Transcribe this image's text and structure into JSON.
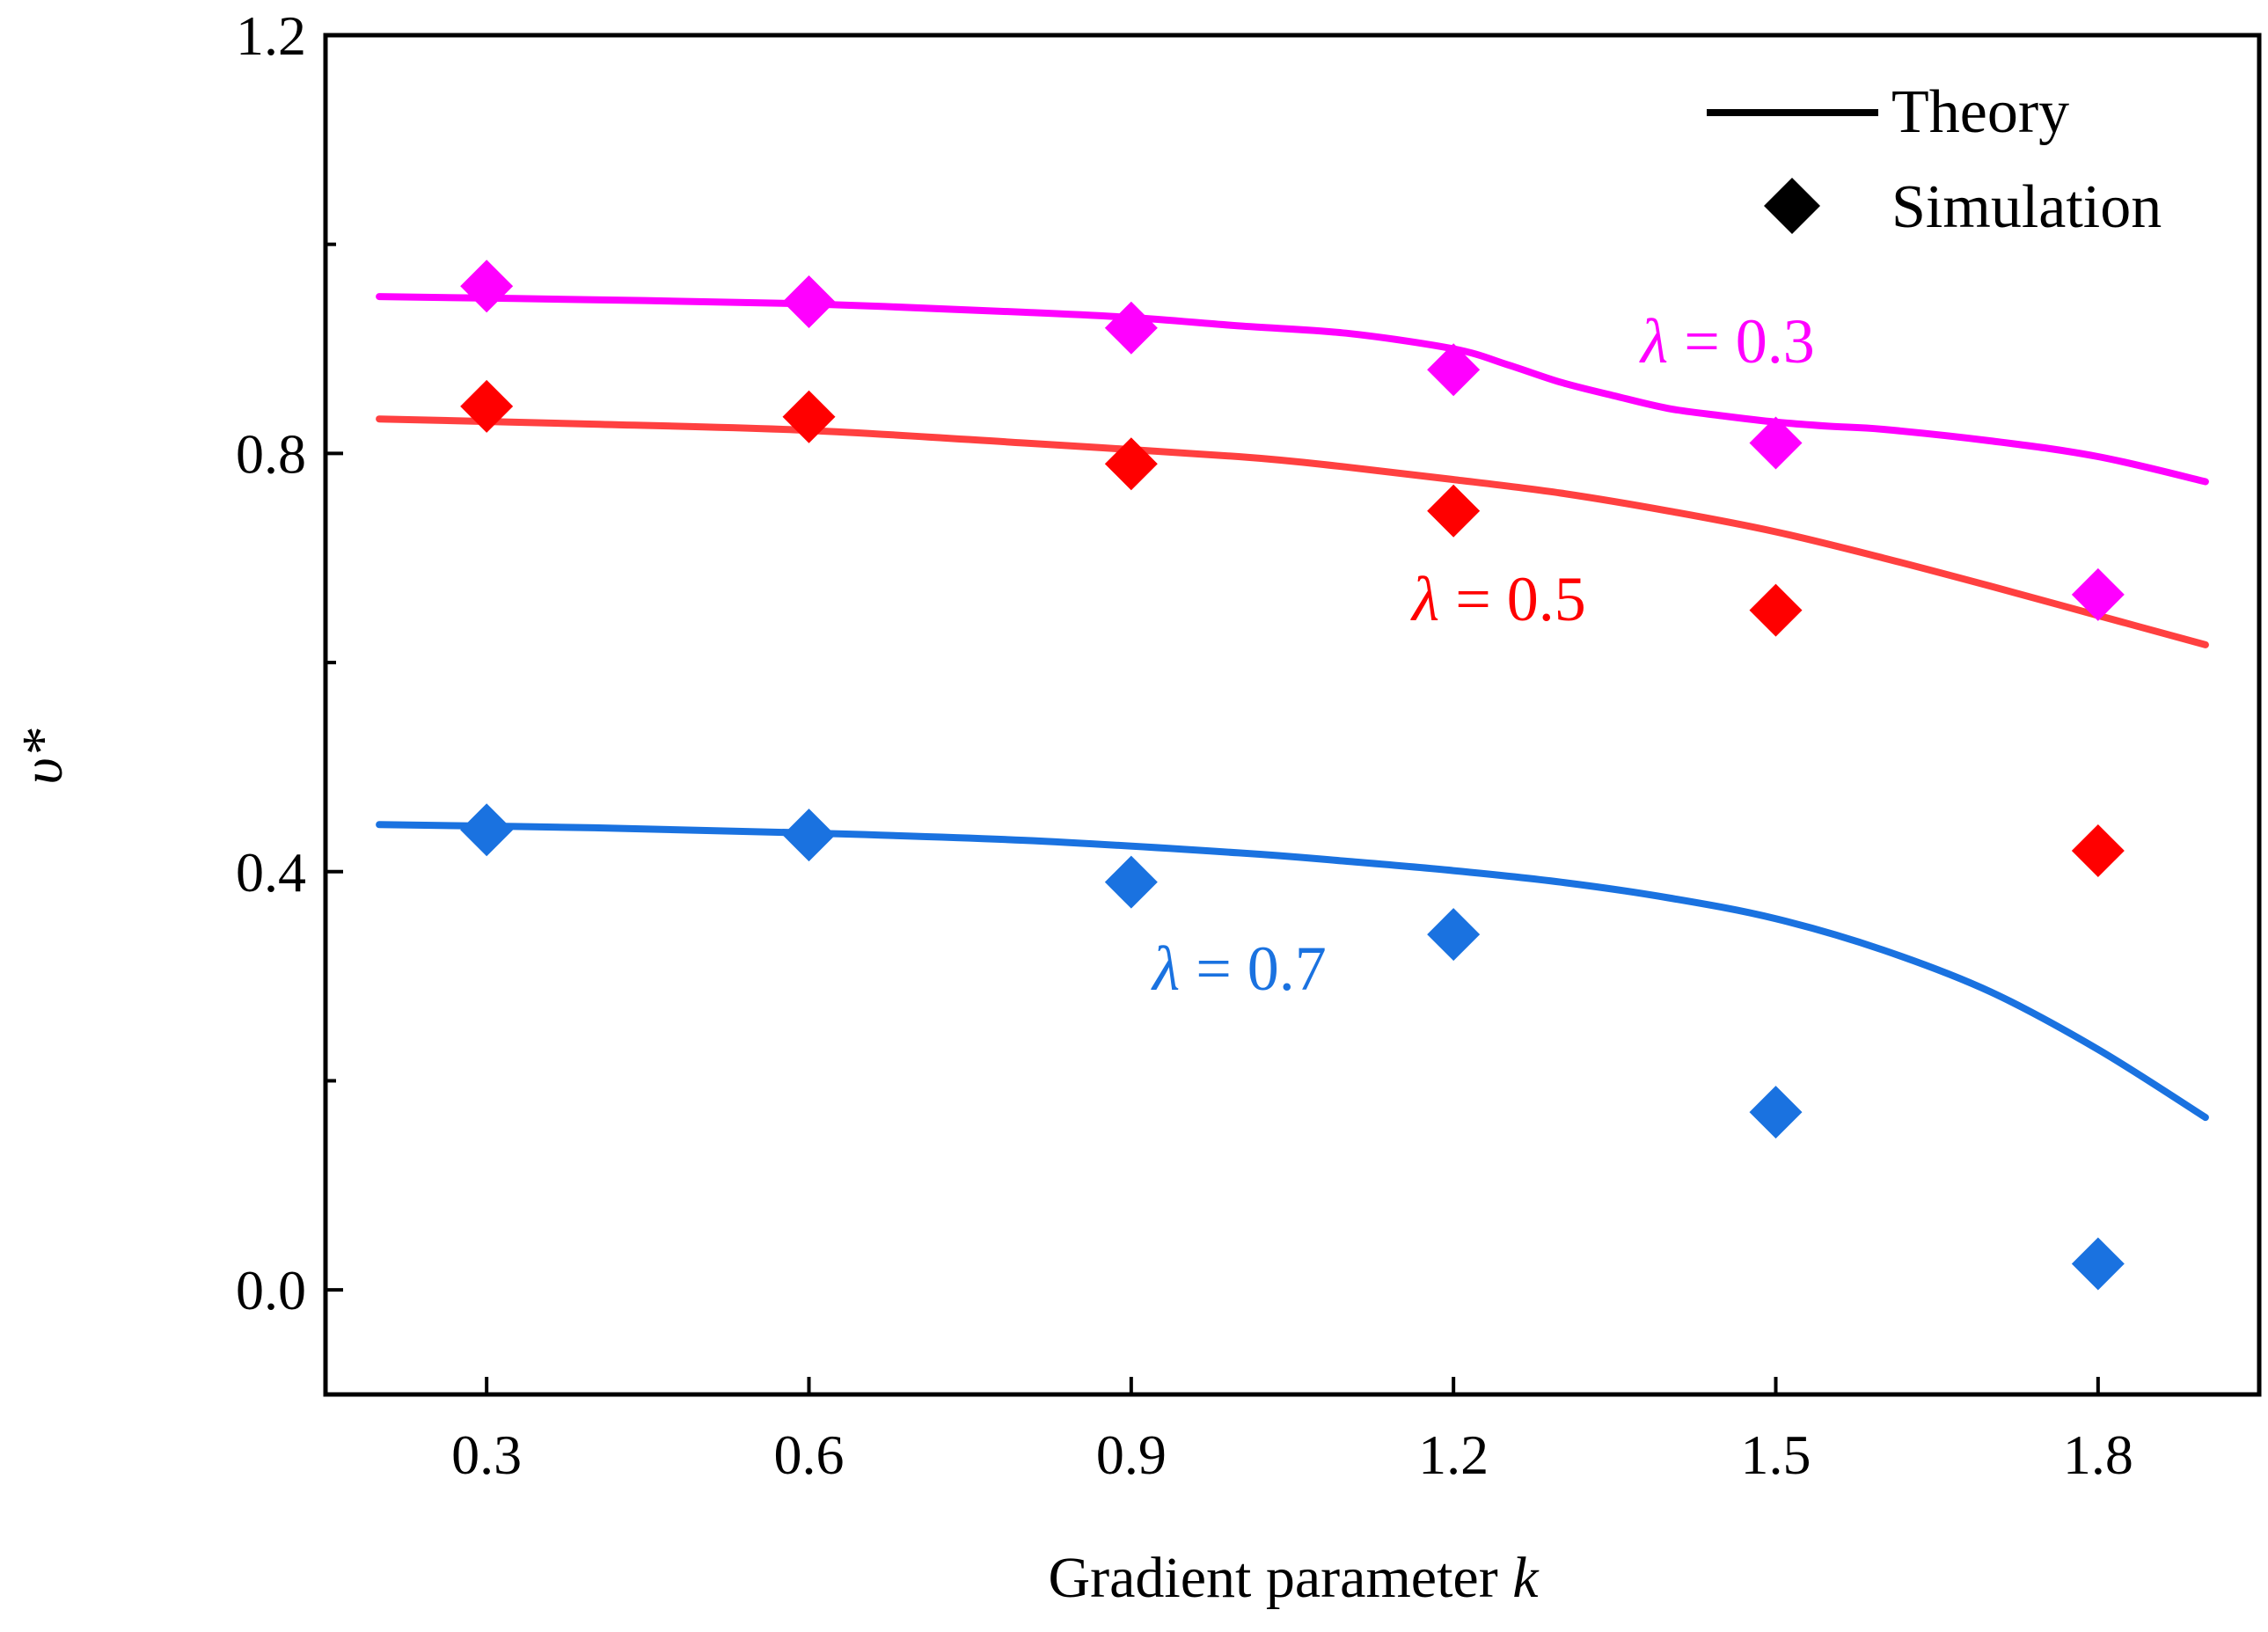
{
  "chart_data": {
    "type": "line",
    "title": "",
    "xlabel": "Gradient parameter",
    "xlabel_var": "k",
    "ylabel": "υ*",
    "xlim": [
      0.15,
      1.95
    ],
    "ylim": [
      -0.1,
      1.2
    ],
    "xticks": [
      0.3,
      0.6,
      0.9,
      1.2,
      1.5,
      1.8
    ],
    "xtick_labels": [
      "0.3",
      "0.6",
      "0.9",
      "1.2",
      "1.5",
      "1.8"
    ],
    "yticks": [
      0.0,
      0.4,
      0.8,
      1.2
    ],
    "ytick_labels": [
      "0.0",
      "0.4",
      "0.8",
      "1.2"
    ],
    "yminor_ticks": [
      0.2,
      0.6,
      1.0
    ],
    "legend": {
      "position": "top-right",
      "entries": [
        {
          "label": "Theory",
          "kind": "line",
          "color": "#000000"
        },
        {
          "label": "Simulation",
          "kind": "diamond",
          "color": "#000000"
        }
      ]
    },
    "series": [
      {
        "name": "λ = 0.3",
        "lambda_label": "λ",
        "value_label": "= 0.3",
        "color": "#ff00ff",
        "theory": {
          "x": [
            0.2,
            0.4,
            0.6,
            0.8,
            0.9,
            1.0,
            1.1,
            1.2,
            1.25,
            1.3,
            1.35,
            1.4,
            1.45,
            1.5,
            1.55,
            1.6,
            1.7,
            1.8,
            1.9
          ],
          "y": [
            0.95,
            0.947,
            0.943,
            0.935,
            0.93,
            0.922,
            0.915,
            0.9,
            0.885,
            0.868,
            0.855,
            0.843,
            0.836,
            0.83,
            0.826,
            0.823,
            0.812,
            0.797,
            0.773
          ]
        },
        "simulation": {
          "x": [
            0.3,
            0.6,
            0.9,
            1.2,
            1.5,
            1.8
          ],
          "y": [
            0.96,
            0.945,
            0.92,
            0.88,
            0.81,
            0.665
          ]
        }
      },
      {
        "name": "λ = 0.5",
        "lambda_label": "λ",
        "value_label": "= 0.5",
        "color": "#ff4040",
        "marker_color": "#ff0000",
        "theory": {
          "x": [
            0.2,
            0.4,
            0.6,
            0.8,
            1.0,
            1.1,
            1.2,
            1.3,
            1.4,
            1.5,
            1.6,
            1.7,
            1.8,
            1.9
          ],
          "y": [
            0.833,
            0.828,
            0.822,
            0.81,
            0.797,
            0.787,
            0.775,
            0.762,
            0.745,
            0.725,
            0.7,
            0.673,
            0.645,
            0.617
          ]
        },
        "simulation": {
          "x": [
            0.3,
            0.6,
            0.9,
            1.2,
            1.5,
            1.8
          ],
          "y": [
            0.845,
            0.835,
            0.79,
            0.745,
            0.65,
            0.42
          ]
        }
      },
      {
        "name": "λ = 0.7",
        "lambda_label": "λ",
        "value_label": "= 0.7",
        "color": "#1a72e0",
        "theory": {
          "x": [
            0.2,
            0.4,
            0.6,
            0.8,
            1.0,
            1.1,
            1.2,
            1.3,
            1.4,
            1.5,
            1.6,
            1.7,
            1.8,
            1.9
          ],
          "y": [
            0.445,
            0.442,
            0.437,
            0.43,
            0.418,
            0.41,
            0.401,
            0.39,
            0.375,
            0.355,
            0.325,
            0.285,
            0.23,
            0.165
          ]
        },
        "simulation": {
          "x": [
            0.3,
            0.6,
            0.9,
            1.2,
            1.5,
            1.8
          ],
          "y": [
            0.44,
            0.435,
            0.39,
            0.34,
            0.17,
            0.025
          ]
        }
      }
    ]
  }
}
